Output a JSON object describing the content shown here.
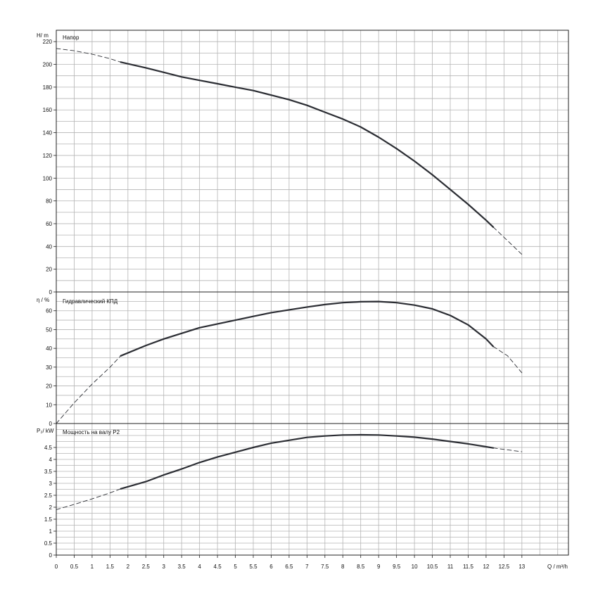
{
  "chart_data": [
    {
      "type": "line",
      "title": "Напор",
      "ylabel": "H/ m",
      "xlabel": "Q / m³/h",
      "xlim": [
        0,
        14.3
      ],
      "ylim": [
        0,
        230
      ],
      "yticks": [
        0,
        20,
        40,
        60,
        80,
        100,
        120,
        140,
        160,
        180,
        200,
        220
      ],
      "grid": true,
      "series": [
        {
          "style": "solid",
          "x": [
            1.8,
            2.5,
            3,
            3.5,
            4,
            4.5,
            5,
            5.5,
            6,
            6.5,
            7,
            7.5,
            8,
            8.5,
            9,
            9.5,
            10,
            10.5,
            11,
            11.5,
            12,
            12.2
          ],
          "y": [
            202,
            197,
            193,
            189,
            186,
            183,
            180,
            177,
            173,
            169,
            164,
            158,
            152,
            145,
            136,
            126,
            115,
            103,
            90,
            77,
            63,
            57
          ]
        },
        {
          "style": "dashed",
          "x": [
            0,
            0.5,
            1,
            1.5,
            1.8
          ],
          "y": [
            214,
            212,
            209,
            205,
            202
          ]
        },
        {
          "style": "dashed",
          "x": [
            12.2,
            12.6,
            13
          ],
          "y": [
            57,
            45,
            33
          ]
        }
      ]
    },
    {
      "type": "line",
      "title": "Гидравлический КПД",
      "ylabel": "η / %",
      "xlim": [
        0,
        14.3
      ],
      "ylim": [
        0,
        70
      ],
      "yticks": [
        0,
        10,
        20,
        30,
        40,
        50,
        60
      ],
      "grid": true,
      "series": [
        {
          "style": "solid",
          "x": [
            1.8,
            2.5,
            3,
            3.5,
            4,
            4.5,
            5,
            5.5,
            6,
            6.5,
            7,
            7.5,
            8,
            8.5,
            9,
            9.5,
            10,
            10.5,
            11,
            11.5,
            12,
            12.2
          ],
          "y": [
            36,
            41.5,
            45,
            48,
            51,
            53,
            55,
            57,
            59,
            60.5,
            62,
            63.3,
            64.3,
            64.8,
            64.9,
            64.3,
            63,
            61,
            57.5,
            52.5,
            45,
            41
          ]
        },
        {
          "style": "dashed",
          "x": [
            0,
            0.5,
            1,
            1.5,
            1.8
          ],
          "y": [
            0,
            11,
            21,
            30,
            36
          ]
        },
        {
          "style": "dashed",
          "x": [
            12.2,
            12.6,
            13
          ],
          "y": [
            41,
            36,
            27
          ]
        }
      ]
    },
    {
      "type": "line",
      "title": "Мощность на валу P2",
      "ylabel": "P₂/ kW",
      "xlabel": "Q / m³/h",
      "xlim": [
        0,
        14.3
      ],
      "ylim": [
        0,
        5.5
      ],
      "yticks": [
        0,
        0.5,
        1,
        1.5,
        2,
        2.5,
        3,
        3.5,
        4,
        4.5
      ],
      "xticks": [
        0,
        0.5,
        1,
        1.5,
        2,
        2.5,
        3,
        3.5,
        4,
        4.5,
        5,
        5.5,
        6,
        6.5,
        7,
        7.5,
        8,
        8.5,
        9,
        9.5,
        10,
        10.5,
        11,
        11.5,
        12,
        12.5,
        13
      ],
      "grid": true,
      "series": [
        {
          "style": "solid",
          "x": [
            1.8,
            2.5,
            3,
            3.5,
            4,
            4.5,
            5,
            5.5,
            6,
            6.5,
            7,
            7.5,
            8,
            8.5,
            9,
            9.5,
            10,
            10.5,
            11,
            11.5,
            12,
            12.2
          ],
          "y": [
            2.77,
            3.07,
            3.35,
            3.6,
            3.87,
            4.1,
            4.3,
            4.5,
            4.68,
            4.8,
            4.92,
            4.98,
            5.02,
            5.03,
            5.02,
            4.98,
            4.93,
            4.85,
            4.75,
            4.65,
            4.53,
            4.48
          ]
        },
        {
          "style": "dashed",
          "x": [
            0,
            0.5,
            1,
            1.5,
            1.8
          ],
          "y": [
            1.9,
            2.12,
            2.35,
            2.6,
            2.77
          ]
        },
        {
          "style": "dashed",
          "x": [
            12.2,
            12.6,
            13
          ],
          "y": [
            4.48,
            4.4,
            4.32
          ]
        }
      ]
    }
  ]
}
